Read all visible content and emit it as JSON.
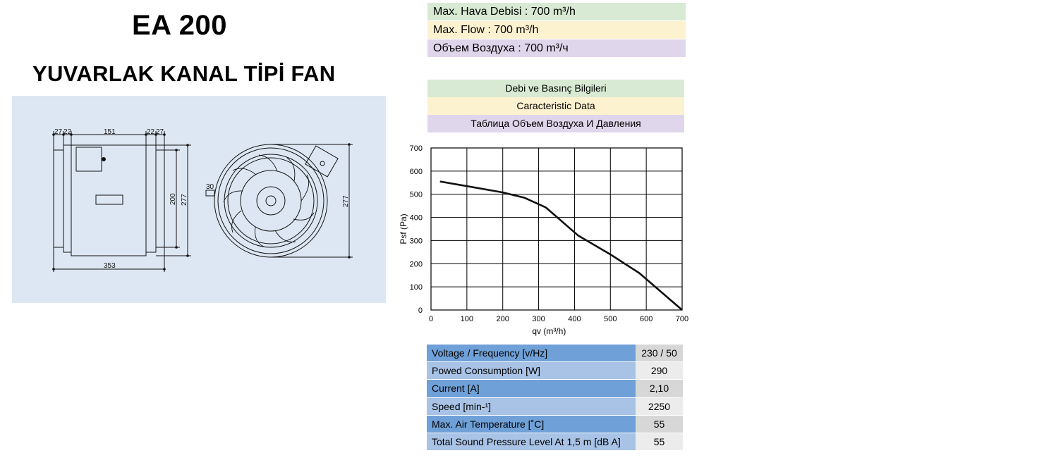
{
  "header": {
    "model": "EA 200",
    "subtitle": "YUVARLAK KANAL TİPİ FAN"
  },
  "drawing": {
    "dims": {
      "d27a": "27",
      "d22a": "22",
      "d151": "151",
      "d22b": "22",
      "d27b": "27",
      "d200": "200",
      "d277a": "277",
      "d353": "353",
      "d30": "30",
      "d277b": "277"
    }
  },
  "airflow": {
    "tr": "Max. Hava Debisi : 700 m³/h",
    "en": "Max. Flow :  700 m³/h",
    "ru": "Объем Воздуха : 700 m³/ч"
  },
  "data_headers": {
    "tr": "Debi ve Basınç Bilgileri",
    "en": "Caracteristic Data",
    "ru": "Таблица Объем Воздуха И Давления"
  },
  "chart_data": {
    "type": "line",
    "xlabel": "qv (m³/h)",
    "ylabel": "Psf (Pa)",
    "xlim": [
      0,
      700
    ],
    "ylim": [
      0,
      700
    ],
    "xticks": [
      0,
      100,
      200,
      300,
      400,
      500,
      600,
      700
    ],
    "yticks": [
      0,
      100,
      200,
      300,
      400,
      500,
      600,
      700
    ],
    "grid": true,
    "series": [
      {
        "x": [
          25,
          100,
          200,
          260,
          320,
          410,
          500,
          580,
          700
        ],
        "y": [
          555,
          535,
          508,
          485,
          443,
          322,
          240,
          160,
          0
        ]
      }
    ]
  },
  "specs": [
    {
      "label": "Voltage / Frequency [v/Hz]",
      "value": "230 / 50"
    },
    {
      "label": "Powed Consumption [W]",
      "value": "290"
    },
    {
      "label": "Current [A]",
      "value": "2,10"
    },
    {
      "label": "Speed [min-¹]",
      "value": "2250"
    },
    {
      "label": "Max. Air Temperature  [˚C]",
      "value": "55"
    },
    {
      "label": "Total Sound Pressure Level At 1,5 m [dB A]",
      "value": "55"
    }
  ]
}
